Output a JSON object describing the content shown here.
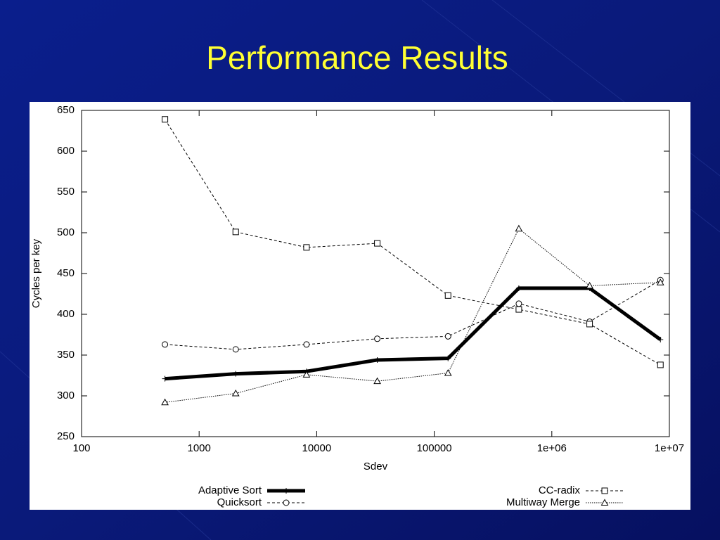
{
  "chart_data": {
    "type": "line",
    "title": "Performance Results",
    "xlabel": "Sdev",
    "ylabel": "Cycles per key",
    "xscale": "log",
    "x": [
      512,
      2048,
      8192,
      32768,
      131072,
      524288,
      2097152,
      8388608
    ],
    "xlim": [
      100,
      10000000
    ],
    "xticks": [
      100,
      1000,
      10000,
      100000,
      {
        "value": 1000000,
        "label": "1e+06"
      },
      {
        "value": 10000000,
        "label": "1e+07"
      }
    ],
    "ylim": [
      250,
      650
    ],
    "yticks": [
      250,
      300,
      350,
      400,
      450,
      500,
      550,
      600,
      650
    ],
    "legend": "bottom",
    "series": [
      {
        "name": "Adaptive Sort",
        "color": "#000000",
        "style": "thick",
        "marker": "plus",
        "values": [
          321,
          327,
          330,
          344,
          346,
          432,
          432,
          369
        ]
      },
      {
        "name": "Quicksort",
        "color": "#000000",
        "style": "dashed",
        "marker": "circle",
        "values": [
          363,
          357,
          363,
          370,
          373,
          413,
          391,
          442
        ]
      },
      {
        "name": "CC-radix",
        "color": "#000000",
        "style": "dashed",
        "marker": "square",
        "values": [
          639,
          501,
          482,
          487,
          423,
          406,
          388,
          338
        ]
      },
      {
        "name": "Multiway Merge",
        "color": "#000000",
        "style": "dotted",
        "marker": "triangle",
        "values": [
          292,
          303,
          326,
          318,
          328,
          505,
          435,
          439
        ]
      }
    ]
  }
}
